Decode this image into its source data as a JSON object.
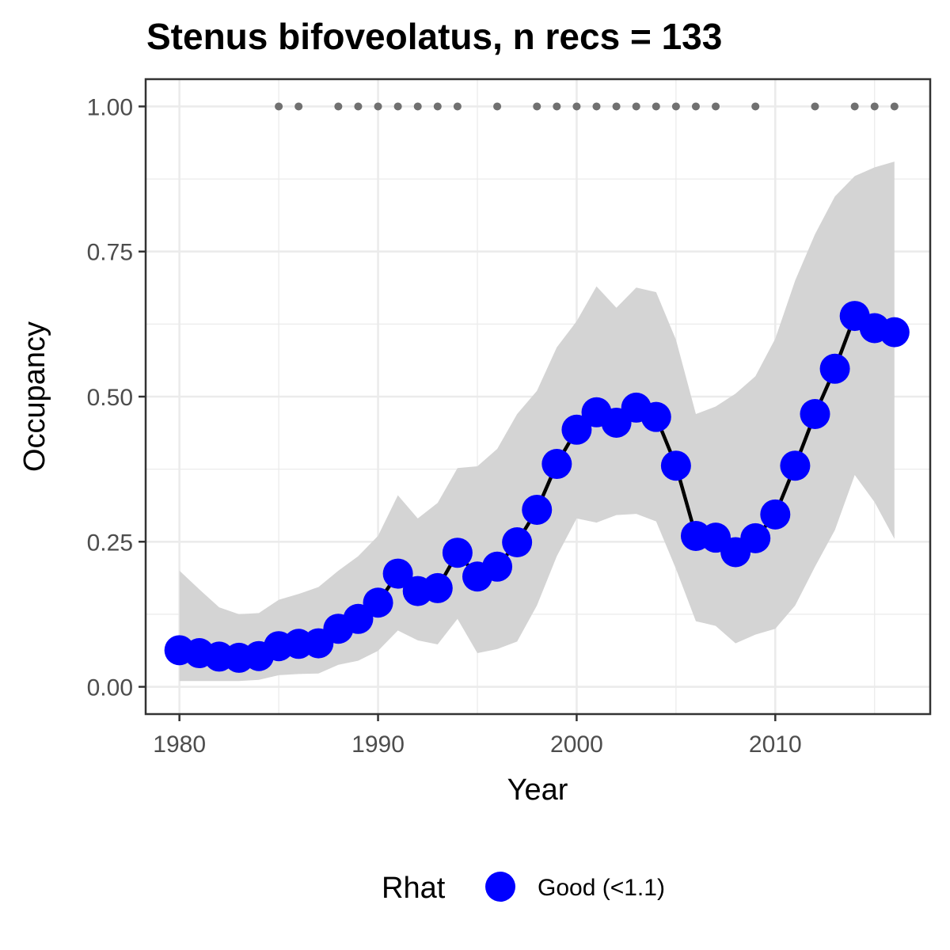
{
  "chart_data": {
    "type": "line",
    "title": "Stenus bifoveolatus, n recs = 133",
    "xlabel": "Year",
    "ylabel": "Occupancy",
    "xlim": [
      1978.3,
      2017.8
    ],
    "ylim": [
      -0.047,
      1.047
    ],
    "x_ticks": [
      1980,
      1990,
      2000,
      2010
    ],
    "x_tick_labels": [
      "1980",
      "1990",
      "2000",
      "2010"
    ],
    "y_ticks": [
      0,
      0.25,
      0.5,
      0.75,
      1.0
    ],
    "y_tick_labels": [
      "0.00",
      "0.25",
      "0.50",
      "0.75",
      "1.00"
    ],
    "grid": true,
    "series": [
      {
        "x": [
          1980,
          1981,
          1982,
          1983,
          1984,
          1985,
          1986,
          1987,
          1988,
          1989,
          1990,
          1991,
          1992,
          1993,
          1994,
          1995,
          1996,
          1997,
          1998,
          1999,
          2000,
          2001,
          2002,
          2003,
          2004,
          2005,
          2006,
          2007,
          2008,
          2009,
          2010,
          2011,
          2012,
          2013,
          2014,
          2015,
          2016
        ],
        "y": [
          0.063,
          0.058,
          0.052,
          0.05,
          0.053,
          0.07,
          0.074,
          0.075,
          0.1,
          0.117,
          0.145,
          0.195,
          0.165,
          0.17,
          0.231,
          0.19,
          0.207,
          0.249,
          0.305,
          0.384,
          0.443,
          0.473,
          0.455,
          0.481,
          0.465,
          0.381,
          0.26,
          0.257,
          0.232,
          0.256,
          0.297,
          0.381,
          0.47,
          0.548,
          0.639,
          0.618,
          0.611
        ],
        "lower": [
          0.01,
          0.01,
          0.01,
          0.01,
          0.012,
          0.02,
          0.022,
          0.023,
          0.038,
          0.045,
          0.062,
          0.097,
          0.08,
          0.073,
          0.117,
          0.058,
          0.065,
          0.078,
          0.14,
          0.225,
          0.29,
          0.283,
          0.296,
          0.298,
          0.285,
          0.203,
          0.113,
          0.105,
          0.075,
          0.09,
          0.1,
          0.14,
          0.207,
          0.27,
          0.365,
          0.318,
          0.255
        ],
        "upper": [
          0.2,
          0.168,
          0.137,
          0.125,
          0.127,
          0.15,
          0.16,
          0.172,
          0.2,
          0.225,
          0.26,
          0.33,
          0.29,
          0.317,
          0.377,
          0.38,
          0.41,
          0.47,
          0.51,
          0.585,
          0.63,
          0.69,
          0.653,
          0.688,
          0.68,
          0.598,
          0.47,
          0.483,
          0.505,
          0.535,
          0.6,
          0.7,
          0.78,
          0.845,
          0.88,
          0.895,
          0.905
        ]
      }
    ],
    "record_years": [
      1985,
      1986,
      1988,
      1989,
      1990,
      1991,
      1992,
      1993,
      1994,
      1996,
      1998,
      1999,
      2000,
      2001,
      2002,
      2003,
      2004,
      2005,
      2006,
      2007,
      2009,
      2012,
      2014,
      2015,
      2016
    ],
    "record_y": 1.0,
    "legend": {
      "position": "bottom",
      "title": "Rhat",
      "entries": [
        {
          "label": "Good (<1.1)",
          "color": "#0000ff"
        }
      ]
    },
    "colors": {
      "points": "#0000ff",
      "line": "#000000",
      "ribbon": "#d4d4d4",
      "records": "#707070",
      "grid": "#ebebeb",
      "panel_border": "#333333"
    }
  }
}
